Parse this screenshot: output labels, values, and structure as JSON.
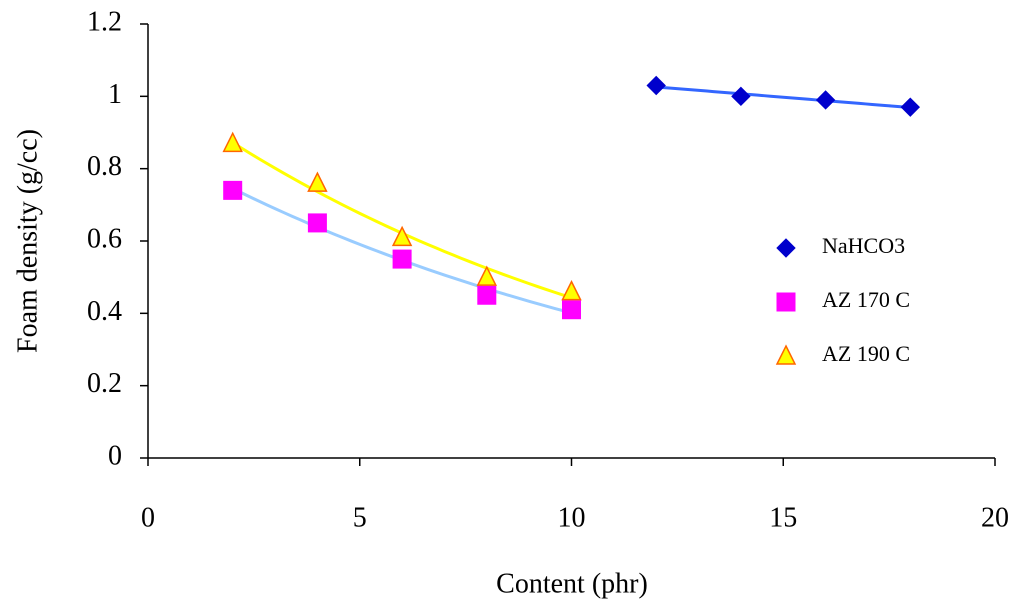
{
  "chart_data": {
    "type": "scatter",
    "x_label": "Content (phr)",
    "y_label": "Foam density (g/cc)",
    "xlim": [
      0,
      20
    ],
    "xticks": [
      0,
      5,
      10,
      15,
      20
    ],
    "ylim": [
      0,
      1.2
    ],
    "yticks": [
      0,
      0.2,
      0.4,
      0.6,
      0.8,
      1,
      1.2
    ],
    "grid": false,
    "legend": "right",
    "series": [
      {
        "name": "NaHCO3",
        "color": "#0000cc",
        "marker": "diamond",
        "trendline": {
          "type": "linear",
          "color": "#3366ff"
        },
        "x": [
          12,
          14,
          16,
          18
        ],
        "values": [
          1.03,
          1.0,
          0.99,
          0.97
        ]
      },
      {
        "name": "AZ 170 C",
        "color": "#ff00ff",
        "marker": "square",
        "trendline": {
          "type": "exponential",
          "color": "#99ccff"
        },
        "x": [
          2,
          4,
          6,
          8,
          10
        ],
        "values": [
          0.74,
          0.65,
          0.55,
          0.45,
          0.41
        ]
      },
      {
        "name": "AZ 190 C",
        "color": "#ffff00",
        "edge": "#ff6600",
        "marker": "triangle",
        "trendline": {
          "type": "exponential",
          "color": "#ffff00"
        },
        "x": [
          2,
          4,
          6,
          8,
          10
        ],
        "values": [
          0.87,
          0.76,
          0.61,
          0.5,
          0.46
        ]
      }
    ]
  }
}
